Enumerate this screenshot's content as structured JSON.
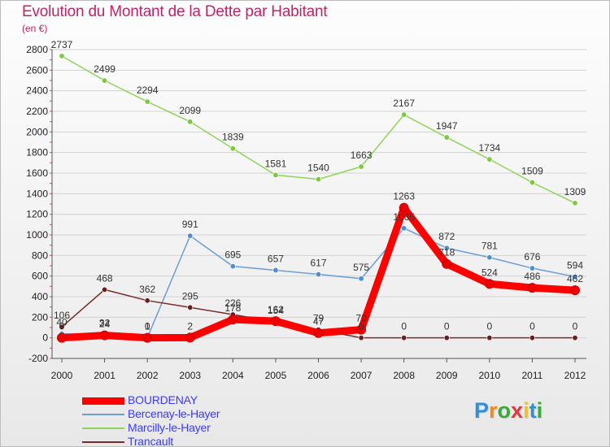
{
  "chart_data": {
    "type": "line",
    "title": "Evolution du Montant de la Dette par Habitant",
    "ylabel": "(en €)",
    "xlabel": "",
    "ylim": [
      -200,
      2800
    ],
    "yticks": [
      -200,
      0,
      200,
      400,
      600,
      800,
      1000,
      1200,
      1400,
      1600,
      1800,
      2000,
      2200,
      2400,
      2600,
      2800
    ],
    "categories": [
      "2000",
      "2001",
      "2002",
      "2003",
      "2004",
      "2005",
      "2006",
      "2007",
      "2008",
      "2009",
      "2010",
      "2011",
      "2012"
    ],
    "series": [
      {
        "name": "Marcilly-le-Hayer",
        "color": "#8fd45a",
        "marker": "#7ec840",
        "values": [
          2737,
          2499,
          2294,
          2099,
          1839,
          1581,
          1540,
          1663,
          2167,
          1947,
          1734,
          1509,
          1309
        ]
      },
      {
        "name": "Bercenay-le-Hayer",
        "color": "#6a9ed4",
        "marker": "#4f8cd0",
        "values": [
          40,
          32,
          1,
          991,
          695,
          657,
          617,
          575,
          1065,
          872,
          781,
          676,
          594
        ]
      },
      {
        "name": "Trancault",
        "color": "#7a2a2a",
        "marker": "#6a1f1f",
        "values": [
          106,
          468,
          362,
          295,
          226,
          154,
          79,
          0,
          0,
          0,
          0,
          0,
          0
        ]
      },
      {
        "name": "BOURDENAY",
        "color": "#ff0000",
        "marker": "#ee0000",
        "values": [
          0,
          24,
          0,
          2,
          178,
          162,
          47,
          79,
          1263,
          718,
          524,
          486,
          462
        ]
      }
    ],
    "data_labels": [
      {
        "series": 0,
        "labels": [
          "2737",
          "2499",
          "2294",
          "2099",
          "1839",
          "1581",
          "1540",
          "1663",
          "2167",
          "1947",
          "1734",
          "1509",
          "1309"
        ]
      },
      {
        "series": 1,
        "labels": [
          "40",
          "32",
          "1",
          "991",
          "695",
          "657",
          "617",
          "575",
          "1065",
          "872",
          "781",
          "676",
          "594"
        ]
      },
      {
        "series": 2,
        "labels": [
          "106",
          "468",
          "362",
          "295",
          "226",
          "154",
          "79",
          "0",
          "0",
          "0",
          "0",
          "0",
          "0"
        ]
      },
      {
        "series": 3,
        "labels": [
          "0",
          "24",
          "0",
          "2",
          "178",
          "162",
          "47",
          "79",
          "1263",
          "718",
          "524",
          "486",
          "462"
        ]
      }
    ],
    "legend": {
      "position": "bottom-left",
      "entries": [
        "BOURDENAY",
        "Bercenay-le-Hayer",
        "Marcilly-le-Hayer",
        "Trancault"
      ]
    }
  },
  "logo": {
    "letters": [
      "P",
      "r",
      "o",
      "x",
      "i",
      "t",
      "i"
    ],
    "colors": [
      "#2f8fd8",
      "#f08a1c",
      "#3aa83a",
      "#e23a3a",
      "#f0c21c",
      "#2f8fd8",
      "#3aa83a"
    ]
  }
}
